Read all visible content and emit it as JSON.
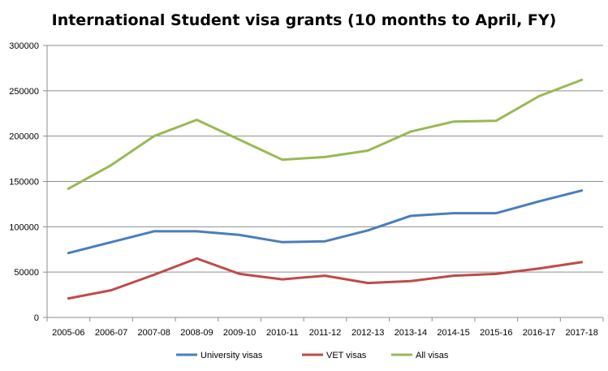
{
  "chart_data": {
    "type": "line",
    "title": "International Student visa grants (10 months to April, FY)",
    "xlabel": "",
    "ylabel": "",
    "categories": [
      "2005-06",
      "2006-07",
      "2007-08",
      "2008-09",
      "2009-10",
      "2010-11",
      "2011-12",
      "2012-13",
      "2013-14",
      "2014-15",
      "2015-16",
      "2016-17",
      "2017-18"
    ],
    "ylim": [
      0,
      300000
    ],
    "yticks": [
      "0",
      "50000",
      "100000",
      "150000",
      "200000",
      "250000",
      "300000"
    ],
    "grid": true,
    "legend_position": "bottom",
    "series": [
      {
        "name": "University visas",
        "color": "#4a7ebb",
        "values": [
          71000,
          83000,
          95000,
          95000,
          91000,
          83000,
          84000,
          96000,
          112000,
          115000,
          115000,
          128000,
          140000
        ]
      },
      {
        "name": "VET visas",
        "color": "#be4b48",
        "values": [
          21000,
          30000,
          47000,
          65000,
          48000,
          42000,
          46000,
          38000,
          40000,
          46000,
          48000,
          54000,
          61000
        ]
      },
      {
        "name": "All visas",
        "color": "#98b954",
        "values": [
          142000,
          168000,
          200000,
          218000,
          196000,
          174000,
          177000,
          184000,
          205000,
          216000,
          217000,
          244000,
          262000
        ]
      }
    ]
  }
}
